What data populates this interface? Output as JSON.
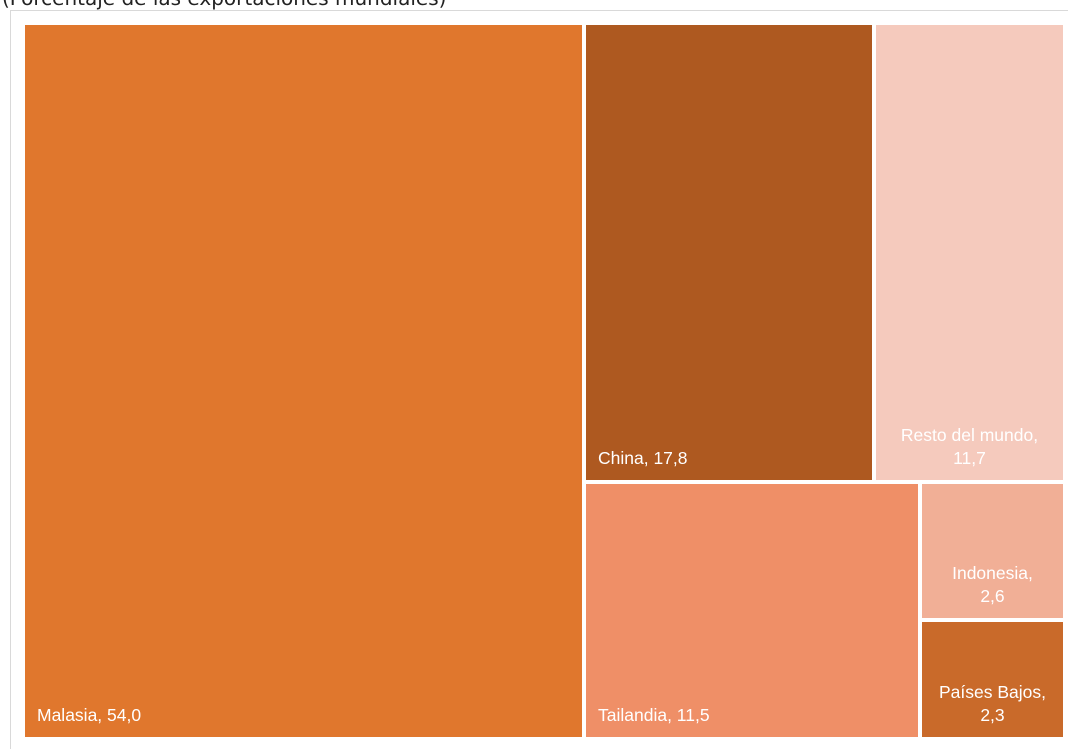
{
  "subtitle": "(Porcentaje de las exportaciones mundiales)",
  "chart_data": {
    "type": "treemap",
    "title": "",
    "subtitle": "(Porcentaje de las exportaciones mundiales)",
    "unit": "%",
    "items": [
      {
        "name": "Malasia",
        "value": 54.0,
        "label": "Malasia, 54,0",
        "color": "#E0772D"
      },
      {
        "name": "China",
        "value": 17.8,
        "label": "China, 17,8",
        "color": "#AE5920"
      },
      {
        "name": "Resto del mundo",
        "value": 11.7,
        "label": "Resto del mundo,\n11,7",
        "color": "#F5CABD"
      },
      {
        "name": "Tailandia",
        "value": 11.5,
        "label": "Tailandia, 11,5",
        "color": "#EF8F67"
      },
      {
        "name": "Indonesia",
        "value": 2.6,
        "label": "Indonesia,\n2,6",
        "color": "#F1AF96"
      },
      {
        "name": "Países Bajos",
        "value": 2.3,
        "label": "Países Bajos,\n2,3",
        "color": "#C96A2A"
      }
    ]
  }
}
